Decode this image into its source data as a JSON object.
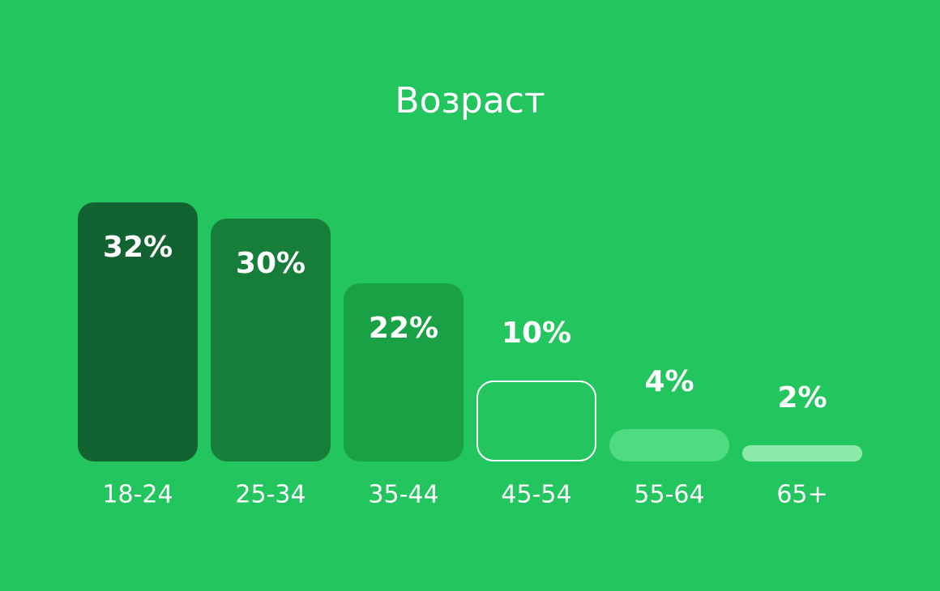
{
  "chart_data": {
    "type": "bar",
    "title": "Возраст",
    "categories": [
      "18-24",
      "25-34",
      "35-44",
      "45-54",
      "55-64",
      "65+"
    ],
    "values": [
      32,
      30,
      22,
      10,
      4,
      2
    ],
    "value_labels": [
      "32%",
      "30%",
      "22%",
      "10%",
      "4%",
      "2%"
    ],
    "colors": [
      "#136332",
      "#167d3a",
      "#19a146",
      "#ffffff",
      "#4edb81",
      "#8ee9ad"
    ],
    "outlined": [
      false,
      false,
      false,
      true,
      false,
      false
    ]
  }
}
